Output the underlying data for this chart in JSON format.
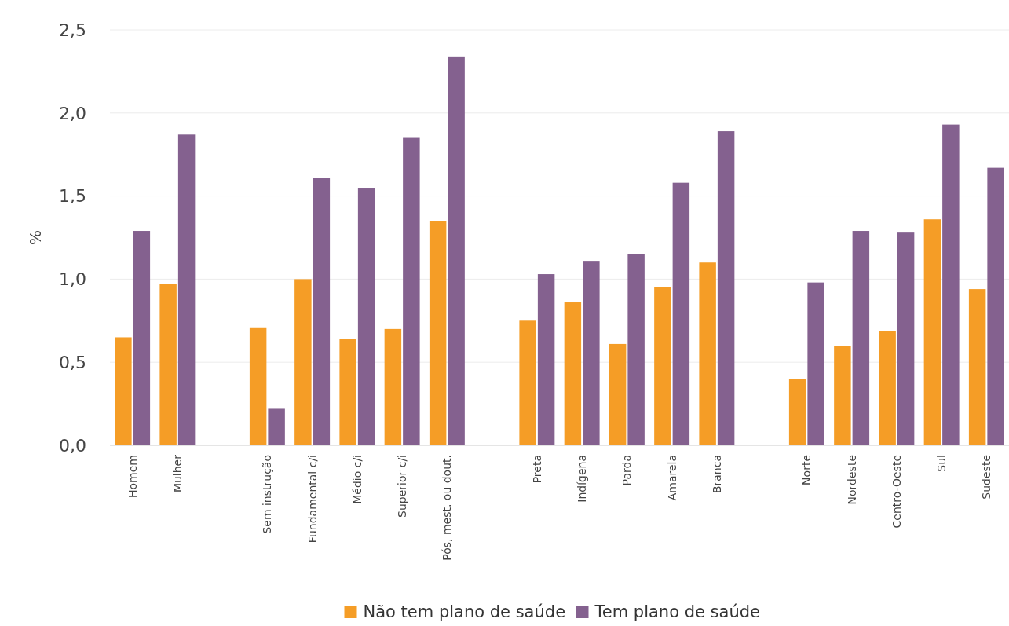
{
  "chart_data": {
    "type": "bar",
    "ylabel": "%",
    "categories": [
      "Homem",
      "Mulher",
      null,
      "Sem instrução",
      "Fundamental c/i",
      "Médio c/i",
      "Superior c/i",
      "Pós, mest. ou dout.",
      null,
      "Preta",
      "Indígena",
      "Parda",
      "Amarela",
      "Branca",
      null,
      "Norte",
      "Nordeste",
      "Centro-Oeste",
      "Sul",
      "Sudeste"
    ],
    "series": [
      {
        "name": "Não tem plano de saúde",
        "color": "#f59d26",
        "values": [
          0.65,
          0.97,
          null,
          0.71,
          1.0,
          0.64,
          0.7,
          1.35,
          null,
          0.75,
          0.86,
          0.61,
          0.95,
          1.1,
          null,
          0.4,
          0.6,
          0.69,
          1.36,
          0.94
        ]
      },
      {
        "name": "Tem plano de saúde",
        "color": "#84618f",
        "values": [
          1.29,
          1.87,
          null,
          0.22,
          1.61,
          1.55,
          1.85,
          2.34,
          null,
          1.03,
          1.11,
          1.15,
          1.58,
          1.89,
          null,
          0.98,
          1.29,
          1.28,
          1.93,
          1.67
        ]
      }
    ],
    "ylim": [
      0,
      2.5
    ],
    "yticks": [
      {
        "value": 0,
        "label": "0,0"
      },
      {
        "value": 0.5,
        "label": "0,5"
      },
      {
        "value": 1,
        "label": "1,0"
      },
      {
        "value": 1.5,
        "label": "1,5"
      },
      {
        "value": 2,
        "label": "2,0"
      },
      {
        "value": 2.5,
        "label": "2,5"
      }
    ],
    "grid": "y",
    "legend": "bottom"
  }
}
